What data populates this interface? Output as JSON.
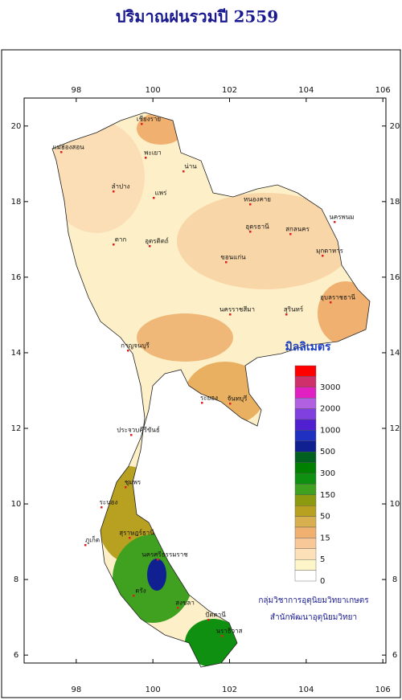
{
  "map": {
    "title": "ปริมาณฝนรวมปี 2559",
    "xlim": [
      96.64,
      106.08
    ],
    "ylim": [
      5.79,
      20.74
    ],
    "lon_ticks": [
      98,
      100,
      102,
      104,
      106
    ],
    "lat_ticks": [
      6,
      8,
      10,
      12,
      14,
      16,
      18,
      20
    ],
    "legend": {
      "title": "มิลลิเมตร",
      "colors": [
        "#ff0000",
        "#d0306a",
        "#e020c0",
        "#b060e0",
        "#8040e0",
        "#5020d0",
        "#2030c0",
        "#102090",
        "#006020",
        "#008000",
        "#109010",
        "#40a020",
        "#8c9a10",
        "#b8a020",
        "#d8b050",
        "#f0b070",
        "#f8c898",
        "#fce0b8",
        "#fdf5c8",
        "#ffffff"
      ],
      "labels": [
        3000,
        2000,
        1000,
        500,
        300,
        150,
        50,
        15,
        5,
        0
      ]
    },
    "places": [
      "เชียงราย",
      "แม่ฮ่องสอน",
      "พะเยา",
      "น่าน",
      "ลำปาง",
      "แพร่",
      "อุตรดิตถ์",
      "ตาก",
      "หนองคาย",
      "อุดรธานี",
      "สกลนคร",
      "นครพนม",
      "ขอนแก่น",
      "มุกดาหาร",
      "อุบลราชธานี",
      "นครราชสีมา",
      "สุรินทร์",
      "กาญจนบุรี",
      "ระยอง",
      "จันทบุรี",
      "ประจวบคีรีขันธ์",
      "ชุมพร",
      "ระนอง",
      "สุราษฎร์ธานี",
      "ภูเก็ต",
      "นครศรีธรรมราช",
      "ตรัง",
      "สงขลา",
      "ปัตตานี",
      "นราธิวาส"
    ],
    "credits": [
      "กลุ่มวิชาการอุตุนิยมวิทยาเกษตร",
      "สำนักพัฒนาอุตุนิยมวิทยา"
    ]
  }
}
